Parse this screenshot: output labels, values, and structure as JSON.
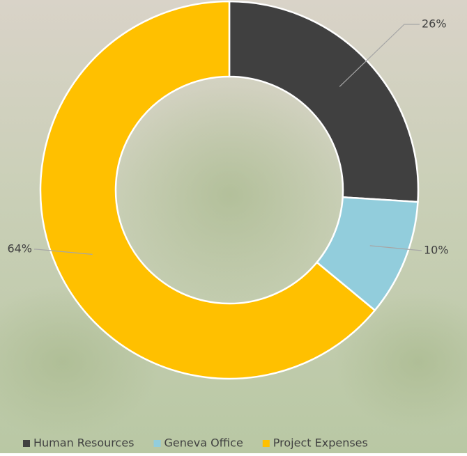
{
  "chart_data": {
    "type": "pie",
    "donut": true,
    "categories": [
      "Human Resources",
      "Geneva Office",
      "Project Expenses"
    ],
    "values": [
      26,
      10,
      64
    ],
    "value_labels": [
      "26%",
      "10%",
      "64%"
    ],
    "colors": [
      "#404040",
      "#92cddc",
      "#ffc000"
    ],
    "legend": "bottom"
  }
}
